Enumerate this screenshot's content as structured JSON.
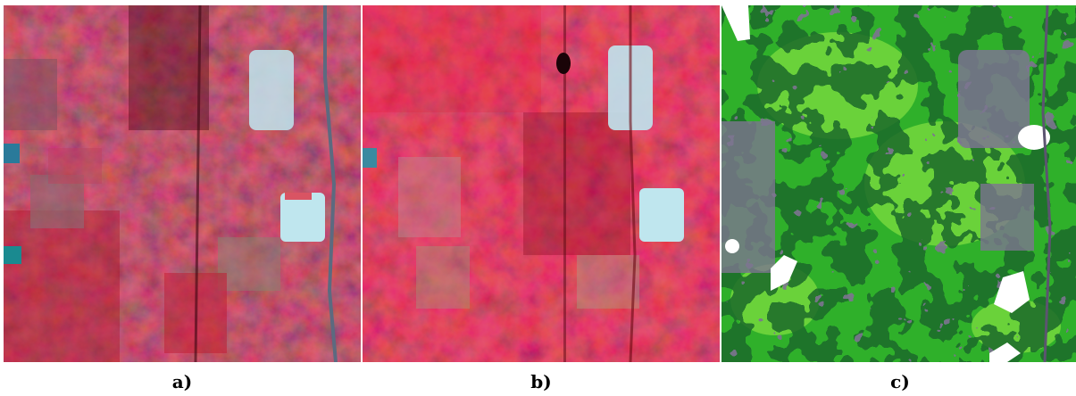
{
  "panels": [
    {
      "id": "a",
      "label": "a)",
      "kind": "false-color-composite"
    },
    {
      "id": "b",
      "label": "b)",
      "kind": "false-color-composite"
    },
    {
      "id": "c",
      "label": "c)",
      "kind": "land-cover-classification"
    }
  ],
  "colors": {
    "background": "#ffffff",
    "vegetation_dark": "#5a0a16",
    "vegetation_red": "#c0152a",
    "vegetation_bright": "#e8203a",
    "urban_cyan": "#bfe6ee",
    "road": "#5c6a80",
    "class_light_green": "#6ad23a",
    "class_mid_green": "#2fb02a",
    "class_dark_green": "#1a6a2a",
    "class_urban": "#7d7590",
    "class_white": "#ffffff"
  }
}
